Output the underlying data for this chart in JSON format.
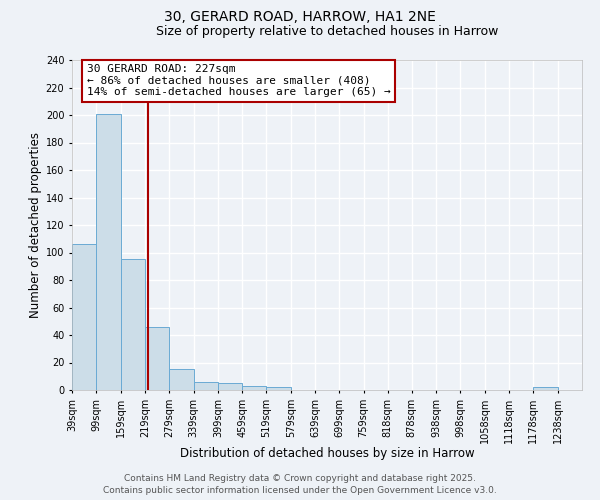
{
  "title": "30, GERARD ROAD, HARROW, HA1 2NE",
  "subtitle": "Size of property relative to detached houses in Harrow",
  "xlabel": "Distribution of detached houses by size in Harrow",
  "ylabel": "Number of detached properties",
  "bar_edges": [
    39,
    99,
    159,
    219,
    279,
    339,
    399,
    459,
    519,
    579,
    639,
    699,
    759,
    818,
    878,
    938,
    998,
    1058,
    1118,
    1178,
    1238
  ],
  "bar_heights": [
    106,
    201,
    95,
    46,
    15,
    6,
    5,
    3,
    2,
    0,
    0,
    0,
    0,
    0,
    0,
    0,
    0,
    0,
    0,
    2,
    0
  ],
  "bar_color": "#ccdde8",
  "bar_edge_color": "#6aaad4",
  "vline_x": 227,
  "vline_color": "#aa0000",
  "annotation_text": "30 GERARD ROAD: 227sqm\n← 86% of detached houses are smaller (408)\n14% of semi-detached houses are larger (65) →",
  "annotation_box_edge_color": "#aa0000",
  "annotation_box_face_color": "#ffffff",
  "ylim": [
    0,
    240
  ],
  "yticks": [
    0,
    20,
    40,
    60,
    80,
    100,
    120,
    140,
    160,
    180,
    200,
    220,
    240
  ],
  "tick_labels": [
    "39sqm",
    "99sqm",
    "159sqm",
    "219sqm",
    "279sqm",
    "339sqm",
    "399sqm",
    "459sqm",
    "519sqm",
    "579sqm",
    "639sqm",
    "699sqm",
    "759sqm",
    "818sqm",
    "878sqm",
    "938sqm",
    "998sqm",
    "1058sqm",
    "1118sqm",
    "1178sqm",
    "1238sqm"
  ],
  "xlim_min": 39,
  "xlim_max": 1298,
  "background_color": "#eef2f7",
  "grid_color": "#ffffff",
  "footer_line1": "Contains HM Land Registry data © Crown copyright and database right 2025.",
  "footer_line2": "Contains public sector information licensed under the Open Government Licence v3.0.",
  "title_fontsize": 10,
  "subtitle_fontsize": 9,
  "axis_label_fontsize": 8.5,
  "tick_fontsize": 7,
  "annotation_fontsize": 8,
  "footer_fontsize": 6.5
}
